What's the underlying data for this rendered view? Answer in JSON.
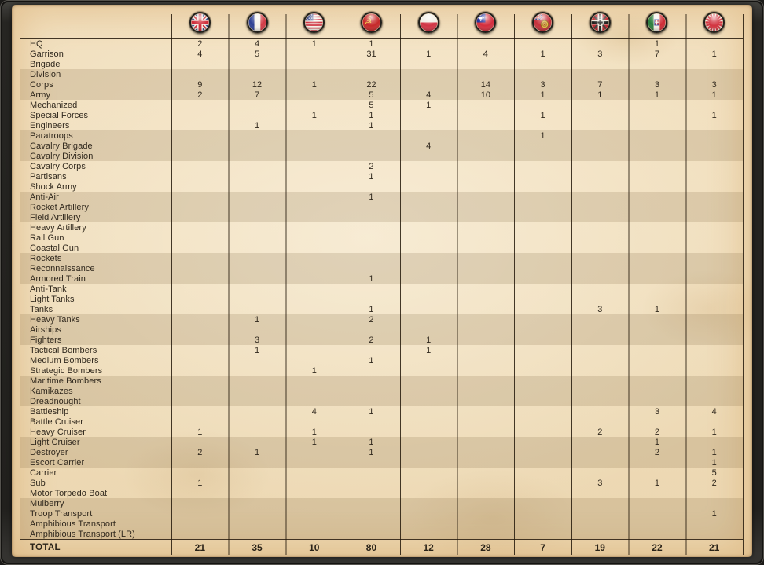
{
  "table": {
    "countries": [
      {
        "icon": "uk-flag"
      },
      {
        "icon": "france-flag"
      },
      {
        "icon": "usa-flag"
      },
      {
        "icon": "ussr-flag"
      },
      {
        "icon": "poland-flag"
      },
      {
        "icon": "china-flag"
      },
      {
        "icon": "british-india-flag"
      },
      {
        "icon": "germany-war-ensign-flag"
      },
      {
        "icon": "italy-flag"
      },
      {
        "icon": "japan-naval-ensign-flag"
      }
    ],
    "rows": [
      {
        "label": "HQ",
        "values": [
          "2",
          "4",
          "1",
          "1",
          "",
          "",
          "",
          "",
          "1",
          ""
        ]
      },
      {
        "label": "Garrison",
        "values": [
          "4",
          "5",
          "",
          "31",
          "1",
          "4",
          "1",
          "3",
          "7",
          "1"
        ]
      },
      {
        "label": "Brigade",
        "values": [
          "",
          "",
          "",
          "",
          "",
          "",
          "",
          "",
          "",
          ""
        ]
      },
      {
        "label": "Division",
        "values": [
          "",
          "",
          "",
          "",
          "",
          "",
          "",
          "",
          "",
          ""
        ]
      },
      {
        "label": "Corps",
        "values": [
          "9",
          "12",
          "1",
          "22",
          "",
          "14",
          "3",
          "7",
          "3",
          "3"
        ]
      },
      {
        "label": "Army",
        "values": [
          "2",
          "7",
          "",
          "5",
          "4",
          "10",
          "1",
          "1",
          "1",
          "1"
        ]
      },
      {
        "label": "Mechanized",
        "values": [
          "",
          "",
          "",
          "5",
          "1",
          "",
          "",
          "",
          "",
          ""
        ]
      },
      {
        "label": "Special Forces",
        "values": [
          "",
          "",
          "1",
          "1",
          "",
          "",
          "1",
          "",
          "",
          "1"
        ]
      },
      {
        "label": "Engineers",
        "values": [
          "",
          "1",
          "",
          "1",
          "",
          "",
          "",
          "",
          "",
          ""
        ]
      },
      {
        "label": "Paratroops",
        "values": [
          "",
          "",
          "",
          "",
          "",
          "",
          "1",
          "",
          "",
          ""
        ]
      },
      {
        "label": "Cavalry Brigade",
        "values": [
          "",
          "",
          "",
          "",
          "4",
          "",
          "",
          "",
          "",
          ""
        ]
      },
      {
        "label": "Cavalry Division",
        "values": [
          "",
          "",
          "",
          "",
          "",
          "",
          "",
          "",
          "",
          ""
        ]
      },
      {
        "label": "Cavalry Corps",
        "values": [
          "",
          "",
          "",
          "2",
          "",
          "",
          "",
          "",
          "",
          ""
        ]
      },
      {
        "label": "Partisans",
        "values": [
          "",
          "",
          "",
          "1",
          "",
          "",
          "",
          "",
          "",
          ""
        ]
      },
      {
        "label": "Shock Army",
        "values": [
          "",
          "",
          "",
          "",
          "",
          "",
          "",
          "",
          "",
          ""
        ]
      },
      {
        "label": "Anti-Air",
        "values": [
          "",
          "",
          "",
          "1",
          "",
          "",
          "",
          "",
          "",
          ""
        ]
      },
      {
        "label": "Rocket Artillery",
        "values": [
          "",
          "",
          "",
          "",
          "",
          "",
          "",
          "",
          "",
          ""
        ]
      },
      {
        "label": "Field Artillery",
        "values": [
          "",
          "",
          "",
          "",
          "",
          "",
          "",
          "",
          "",
          ""
        ]
      },
      {
        "label": "Heavy Artillery",
        "values": [
          "",
          "",
          "",
          "",
          "",
          "",
          "",
          "",
          "",
          ""
        ]
      },
      {
        "label": "Rail Gun",
        "values": [
          "",
          "",
          "",
          "",
          "",
          "",
          "",
          "",
          "",
          ""
        ]
      },
      {
        "label": "Coastal Gun",
        "values": [
          "",
          "",
          "",
          "",
          "",
          "",
          "",
          "",
          "",
          ""
        ]
      },
      {
        "label": "Rockets",
        "values": [
          "",
          "",
          "",
          "",
          "",
          "",
          "",
          "",
          "",
          ""
        ]
      },
      {
        "label": "Reconnaissance",
        "values": [
          "",
          "",
          "",
          "",
          "",
          "",
          "",
          "",
          "",
          ""
        ]
      },
      {
        "label": "Armored Train",
        "values": [
          "",
          "",
          "",
          "1",
          "",
          "",
          "",
          "",
          "",
          ""
        ]
      },
      {
        "label": "Anti-Tank",
        "values": [
          "",
          "",
          "",
          "",
          "",
          "",
          "",
          "",
          "",
          ""
        ]
      },
      {
        "label": "Light Tanks",
        "values": [
          "",
          "",
          "",
          "",
          "",
          "",
          "",
          "",
          "",
          ""
        ]
      },
      {
        "label": "Tanks",
        "values": [
          "",
          "",
          "",
          "1",
          "",
          "",
          "",
          "3",
          "1",
          ""
        ]
      },
      {
        "label": "Heavy Tanks",
        "values": [
          "",
          "1",
          "",
          "2",
          "",
          "",
          "",
          "",
          "",
          ""
        ]
      },
      {
        "label": "Airships",
        "values": [
          "",
          "",
          "",
          "",
          "",
          "",
          "",
          "",
          "",
          ""
        ]
      },
      {
        "label": "Fighters",
        "values": [
          "",
          "3",
          "",
          "2",
          "1",
          "",
          "",
          "",
          "",
          ""
        ]
      },
      {
        "label": "Tactical Bombers",
        "values": [
          "",
          "1",
          "",
          "",
          "1",
          "",
          "",
          "",
          "",
          ""
        ]
      },
      {
        "label": "Medium Bombers",
        "values": [
          "",
          "",
          "",
          "1",
          "",
          "",
          "",
          "",
          "",
          ""
        ]
      },
      {
        "label": "Strategic Bombers",
        "values": [
          "",
          "",
          "1",
          "",
          "",
          "",
          "",
          "",
          "",
          ""
        ]
      },
      {
        "label": "Maritime Bombers",
        "values": [
          "",
          "",
          "",
          "",
          "",
          "",
          "",
          "",
          "",
          ""
        ]
      },
      {
        "label": "Kamikazes",
        "values": [
          "",
          "",
          "",
          "",
          "",
          "",
          "",
          "",
          "",
          ""
        ]
      },
      {
        "label": "Dreadnought",
        "values": [
          "",
          "",
          "",
          "",
          "",
          "",
          "",
          "",
          "",
          ""
        ]
      },
      {
        "label": "Battleship",
        "values": [
          "",
          "",
          "4",
          "1",
          "",
          "",
          "",
          "",
          "3",
          "4"
        ]
      },
      {
        "label": "Battle Cruiser",
        "values": [
          "",
          "",
          "",
          "",
          "",
          "",
          "",
          "",
          "",
          ""
        ]
      },
      {
        "label": "Heavy Cruiser",
        "values": [
          "1",
          "",
          "1",
          "",
          "",
          "",
          "",
          "2",
          "2",
          "1"
        ]
      },
      {
        "label": "Light Cruiser",
        "values": [
          "",
          "",
          "1",
          "1",
          "",
          "",
          "",
          "",
          "1",
          ""
        ]
      },
      {
        "label": "Destroyer",
        "values": [
          "2",
          "1",
          "",
          "1",
          "",
          "",
          "",
          "",
          "2",
          "1"
        ]
      },
      {
        "label": "Escort Carrier",
        "values": [
          "",
          "",
          "",
          "",
          "",
          "",
          "",
          "",
          "",
          "1"
        ]
      },
      {
        "label": "Carrier",
        "values": [
          "",
          "",
          "",
          "",
          "",
          "",
          "",
          "",
          "",
          "5"
        ]
      },
      {
        "label": "Sub",
        "values": [
          "1",
          "",
          "",
          "",
          "",
          "",
          "",
          "3",
          "1",
          "2"
        ]
      },
      {
        "label": "Motor Torpedo Boat",
        "values": [
          "",
          "",
          "",
          "",
          "",
          "",
          "",
          "",
          "",
          ""
        ]
      },
      {
        "label": "Mulberry",
        "values": [
          "",
          "",
          "",
          "",
          "",
          "",
          "",
          "",
          "",
          ""
        ]
      },
      {
        "label": "Troop Transport",
        "values": [
          "",
          "",
          "",
          "",
          "",
          "",
          "",
          "",
          "",
          "1"
        ]
      },
      {
        "label": "Amphibious Transport",
        "values": [
          "",
          "",
          "",
          "",
          "",
          "",
          "",
          "",
          "",
          ""
        ]
      },
      {
        "label": "Amphibious Transport (LR)",
        "values": [
          "",
          "",
          "",
          "",
          "",
          "",
          "",
          "",
          "",
          ""
        ]
      }
    ],
    "total": {
      "label": "TOTAL",
      "values": [
        "21",
        "35",
        "10",
        "80",
        "12",
        "28",
        "7",
        "19",
        "22",
        "21"
      ]
    }
  },
  "colors": {
    "parchment": "#f1dfbe",
    "stripe": "rgba(104,78,42,0.16)",
    "gridline": "#23180a",
    "text": "#31291e",
    "frame": "#23221f"
  }
}
